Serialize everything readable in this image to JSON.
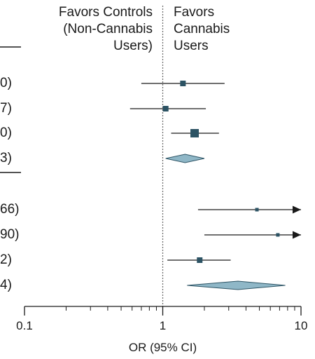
{
  "chart_data": {
    "type": "forest",
    "xscale": "log",
    "xlim": [
      0.1,
      10
    ],
    "xlabel": "OR (95% CI)",
    "x_ticks_major": [
      "0.1",
      "1",
      "10"
    ],
    "reference_line": 1,
    "header_left": "Favors Controls\n(Non-Cannabis\nUsers)",
    "header_right": "Favors\nCannabis\nUsers",
    "colors": {
      "marker": "#2c5364",
      "diamond_fill": "#8fb7c7",
      "diamond_stroke": "#2c5364",
      "line": "#1a1a1a"
    },
    "groups": [
      {
        "studies": [
          {
            "row_label": "0)",
            "or": 1.4,
            "ci": [
              0.7,
              2.8
            ],
            "weight": "medium"
          },
          {
            "row_label": "7)",
            "or": 1.05,
            "ci": [
              0.58,
              2.05
            ],
            "weight": "medium"
          },
          {
            "row_label": "0)",
            "or": 1.7,
            "ci": [
              1.15,
              2.55
            ],
            "weight": "large"
          }
        ],
        "pooled": {
          "row_label": "3)",
          "or": 1.45,
          "ci": [
            1.05,
            2.0
          ]
        }
      },
      {
        "studies": [
          {
            "row_label": "66)",
            "or": 4.8,
            "ci": [
              1.8,
              10
            ],
            "arrow": true,
            "weight": "small"
          },
          {
            "row_label": "90)",
            "or": 6.8,
            "ci": [
              2.0,
              10
            ],
            "arrow": true,
            "weight": "small"
          },
          {
            "row_label": "2)",
            "or": 1.85,
            "ci": [
              1.08,
              3.1
            ],
            "weight": "medium"
          }
        ],
        "pooled": {
          "row_label": "4)",
          "or": 3.5,
          "ci": [
            1.5,
            7.7
          ]
        }
      }
    ]
  }
}
